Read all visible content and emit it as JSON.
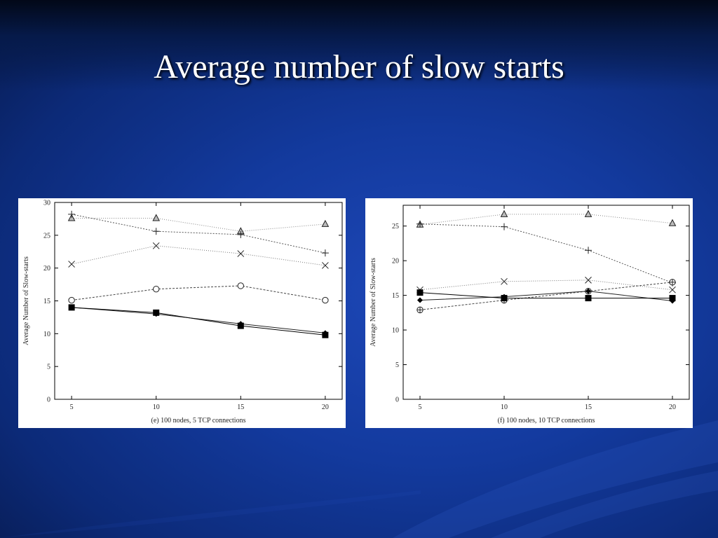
{
  "slide": {
    "title": "Average number of slow starts"
  },
  "chart_data": [
    {
      "type": "line",
      "title": "",
      "caption": "(e) 100 nodes, 5 TCP connections",
      "xlabel": "",
      "ylabel": "Average Number of Slow-starts",
      "x": [
        5,
        10,
        15,
        20
      ],
      "xlim": [
        4,
        21
      ],
      "ylim": [
        0,
        30
      ],
      "yticks": [
        0,
        5,
        10,
        15,
        20,
        25,
        30
      ],
      "legend": "none",
      "series": [
        {
          "marker": "triangle",
          "dash": "1,2",
          "color": "#888888",
          "values": [
            27.6,
            27.6,
            25.6,
            26.7
          ]
        },
        {
          "marker": "plus",
          "dash": "2,2",
          "color": "#555555",
          "values": [
            28.2,
            25.6,
            25.1,
            22.3
          ]
        },
        {
          "marker": "cross",
          "dash": "1,2",
          "color": "#777777",
          "values": [
            20.6,
            23.4,
            22.2,
            20.4
          ]
        },
        {
          "marker": "circle",
          "dash": "3,2",
          "color": "#444444",
          "values": [
            15.1,
            16.8,
            17.3,
            15.1
          ]
        },
        {
          "marker": "diamond",
          "dash": "",
          "color": "#222222",
          "values": [
            14.0,
            13.0,
            11.5,
            10.1
          ]
        },
        {
          "marker": "square",
          "dash": "",
          "color": "#000000",
          "values": [
            14.0,
            13.2,
            11.2,
            9.8
          ]
        }
      ]
    },
    {
      "type": "line",
      "title": "",
      "caption": "(f) 100 nodes, 10 TCP connections",
      "xlabel": "",
      "ylabel": "Average Number of Slow-starts",
      "x": [
        5,
        10,
        15,
        20
      ],
      "xlim": [
        4,
        21
      ],
      "ylim": [
        0,
        28
      ],
      "yticks": [
        0,
        5,
        10,
        15,
        20,
        25
      ],
      "legend": "none",
      "series": [
        {
          "marker": "triangle",
          "dash": "1,2",
          "color": "#888888",
          "values": [
            25.2,
            26.7,
            26.7,
            25.4
          ]
        },
        {
          "marker": "plus",
          "dash": "2,2",
          "color": "#555555",
          "values": [
            25.3,
            24.9,
            21.5,
            16.8
          ]
        },
        {
          "marker": "cross",
          "dash": "1,2",
          "color": "#777777",
          "values": [
            15.8,
            17.0,
            17.2,
            15.8
          ]
        },
        {
          "marker": "oplus",
          "dash": "3,2",
          "color": "#444444",
          "values": [
            12.9,
            14.3,
            15.6,
            16.9
          ]
        },
        {
          "marker": "diamond",
          "dash": "",
          "color": "#222222",
          "values": [
            14.3,
            14.8,
            15.6,
            14.2
          ]
        },
        {
          "marker": "square",
          "dash": "",
          "color": "#000000",
          "values": [
            15.4,
            14.6,
            14.6,
            14.6
          ]
        }
      ]
    }
  ]
}
